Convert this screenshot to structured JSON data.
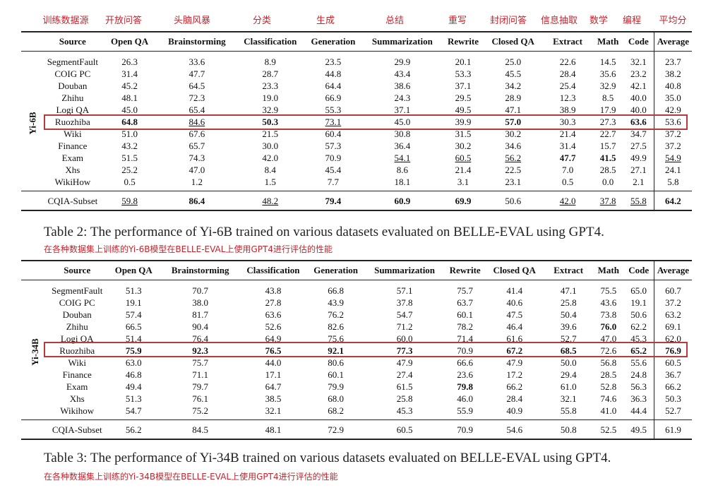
{
  "zh_header": [
    "训练数据源",
    "开放问答",
    "头脑风暴",
    "分类",
    "生成",
    "总结",
    "重写",
    "封闭问答",
    "信息抽取",
    "数学",
    "编程",
    "平均分"
  ],
  "columns": [
    "Source",
    "Open QA",
    "Brainstorming",
    "Classification",
    "Generation",
    "Summarization",
    "Rewrite",
    "Closed QA",
    "Extract",
    "Math",
    "Code",
    "Average"
  ],
  "table2": {
    "model": "Yi-6B",
    "rows": [
      {
        "source": "SegmentFault",
        "values": [
          "26.3",
          "33.6",
          "8.9",
          "23.5",
          "29.9",
          "20.1",
          "25.0",
          "22.6",
          "14.5",
          "32.1",
          "23.7"
        ],
        "bold": [],
        "underline": []
      },
      {
        "source": "COIG PC",
        "values": [
          "31.4",
          "47.7",
          "28.7",
          "44.8",
          "43.4",
          "53.3",
          "45.5",
          "28.4",
          "35.6",
          "23.2",
          "38.2"
        ],
        "bold": [],
        "underline": []
      },
      {
        "source": "Douban",
        "values": [
          "45.2",
          "64.5",
          "23.3",
          "64.4",
          "38.6",
          "37.1",
          "34.2",
          "25.4",
          "32.9",
          "42.1",
          "40.8"
        ],
        "bold": [],
        "underline": []
      },
      {
        "source": "Zhihu",
        "values": [
          "48.1",
          "72.3",
          "19.0",
          "66.9",
          "24.3",
          "29.5",
          "28.9",
          "12.3",
          "8.5",
          "40.0",
          "35.0"
        ],
        "bold": [],
        "underline": []
      },
      {
        "source": "Logi QA",
        "values": [
          "45.0",
          "65.4",
          "32.9",
          "55.3",
          "37.1",
          "49.5",
          "47.1",
          "38.9",
          "17.9",
          "40.0",
          "42.9"
        ],
        "bold": [],
        "underline": []
      },
      {
        "source": "Ruozhiba",
        "values": [
          "64.8",
          "84.6",
          "50.3",
          "73.1",
          "45.0",
          "39.9",
          "57.0",
          "30.3",
          "27.3",
          "63.6",
          "53.6"
        ],
        "bold": [
          0,
          2,
          6,
          9
        ],
        "underline": [
          1,
          3
        ]
      },
      {
        "source": "Wiki",
        "values": [
          "51.0",
          "67.6",
          "21.5",
          "60.4",
          "30.8",
          "31.5",
          "30.2",
          "21.4",
          "22.7",
          "34.7",
          "37.2"
        ],
        "bold": [],
        "underline": []
      },
      {
        "source": "Finance",
        "values": [
          "43.2",
          "65.7",
          "30.0",
          "57.3",
          "36.4",
          "30.2",
          "34.6",
          "31.4",
          "15.7",
          "27.5",
          "37.2"
        ],
        "bold": [],
        "underline": []
      },
      {
        "source": "Exam",
        "values": [
          "51.5",
          "74.3",
          "42.0",
          "70.9",
          "54.1",
          "60.5",
          "56.2",
          "47.7",
          "41.5",
          "49.9",
          "54.9"
        ],
        "bold": [
          7,
          8
        ],
        "underline": [
          4,
          5,
          6,
          10
        ]
      },
      {
        "source": "Xhs",
        "values": [
          "25.2",
          "47.0",
          "8.4",
          "45.4",
          "8.6",
          "21.4",
          "22.5",
          "7.0",
          "28.5",
          "27.1",
          "24.1"
        ],
        "bold": [],
        "underline": []
      },
      {
        "source": "WikiHow",
        "values": [
          "0.5",
          "1.2",
          "1.5",
          "7.7",
          "18.1",
          "3.1",
          "23.1",
          "0.5",
          "0.0",
          "2.1",
          "5.8"
        ],
        "bold": [],
        "underline": []
      }
    ],
    "cqia": {
      "source": "CQIA-Subset",
      "values": [
        "59.8",
        "86.4",
        "48.2",
        "79.4",
        "60.9",
        "69.9",
        "50.6",
        "42.0",
        "37.8",
        "55.8",
        "64.2"
      ],
      "bold": [
        1,
        3,
        4,
        5,
        10
      ],
      "underline": [
        0,
        2,
        7,
        8,
        9
      ]
    },
    "caption": "Table 2: The performance of Yi-6B trained on various datasets evaluated on BELLE-EVAL using GPT4.",
    "caption_zh": "在各种数据集上训练的Yi-6B模型在BELLE-EVAL上使用GPT4进行评估的性能"
  },
  "table3": {
    "model": "Yi-34B",
    "rows": [
      {
        "source": "SegmentFault",
        "values": [
          "51.3",
          "70.7",
          "43.8",
          "66.8",
          "57.1",
          "75.7",
          "41.4",
          "47.1",
          "75.5",
          "65.0",
          "60.7"
        ],
        "bold": [],
        "underline": []
      },
      {
        "source": "COIG PC",
        "values": [
          "19.1",
          "38.0",
          "27.8",
          "43.9",
          "37.8",
          "63.7",
          "40.6",
          "25.8",
          "43.6",
          "19.1",
          "37.2"
        ],
        "bold": [],
        "underline": []
      },
      {
        "source": "Douban",
        "values": [
          "57.4",
          "81.7",
          "63.6",
          "76.2",
          "54.7",
          "60.1",
          "47.5",
          "50.4",
          "73.8",
          "50.6",
          "63.2"
        ],
        "bold": [],
        "underline": []
      },
      {
        "source": "Zhihu",
        "values": [
          "66.5",
          "90.4",
          "52.6",
          "82.6",
          "71.2",
          "78.2",
          "46.4",
          "39.6",
          "76.0",
          "62.2",
          "69.1"
        ],
        "bold": [
          8
        ],
        "underline": []
      },
      {
        "source": "Logi QA",
        "values": [
          "51.4",
          "76.4",
          "64.9",
          "75.6",
          "60.0",
          "71.4",
          "61.6",
          "52.7",
          "47.0",
          "45.3",
          "62.0"
        ],
        "bold": [],
        "underline": []
      },
      {
        "source": "Ruozhiba",
        "values": [
          "75.9",
          "92.3",
          "76.5",
          "92.1",
          "77.3",
          "70.9",
          "67.2",
          "68.5",
          "72.6",
          "65.2",
          "76.9"
        ],
        "bold": [
          0,
          1,
          2,
          3,
          4,
          6,
          7,
          9,
          10
        ],
        "underline": []
      },
      {
        "source": "Wiki",
        "values": [
          "63.0",
          "75.7",
          "44.0",
          "80.6",
          "47.9",
          "66.6",
          "47.9",
          "50.0",
          "56.8",
          "55.6",
          "60.5"
        ],
        "bold": [],
        "underline": []
      },
      {
        "source": "Finance",
        "values": [
          "46.8",
          "71.1",
          "17.1",
          "60.1",
          "27.4",
          "23.6",
          "17.2",
          "29.4",
          "28.5",
          "24.8",
          "36.7"
        ],
        "bold": [],
        "underline": []
      },
      {
        "source": "Exam",
        "values": [
          "49.4",
          "79.7",
          "64.7",
          "79.9",
          "61.5",
          "79.8",
          "66.2",
          "61.0",
          "52.8",
          "56.3",
          "66.2"
        ],
        "bold": [
          5
        ],
        "underline": []
      },
      {
        "source": "Xhs",
        "values": [
          "51.3",
          "76.1",
          "38.5",
          "68.0",
          "25.8",
          "46.0",
          "28.4",
          "32.1",
          "74.6",
          "36.3",
          "50.3"
        ],
        "bold": [],
        "underline": []
      },
      {
        "source": "Wikihow",
        "values": [
          "54.7",
          "75.2",
          "32.1",
          "68.2",
          "45.3",
          "55.9",
          "40.9",
          "55.8",
          "41.0",
          "44.4",
          "52.7"
        ],
        "bold": [],
        "underline": []
      }
    ],
    "cqia": {
      "source": "CQIA-Subset",
      "values": [
        "56.2",
        "84.5",
        "48.1",
        "72.9",
        "60.5",
        "70.9",
        "54.6",
        "50.8",
        "52.5",
        "49.5",
        "61.9"
      ],
      "bold": [],
      "underline": []
    },
    "caption": "Table 3: The performance of Yi-34B trained on various datasets evaluated on BELLE-EVAL using GPT4.",
    "caption_zh": "在各种数据集上训练的Yi-34B模型在BELLE-EVAL上使用GPT4进行评估的性能"
  }
}
